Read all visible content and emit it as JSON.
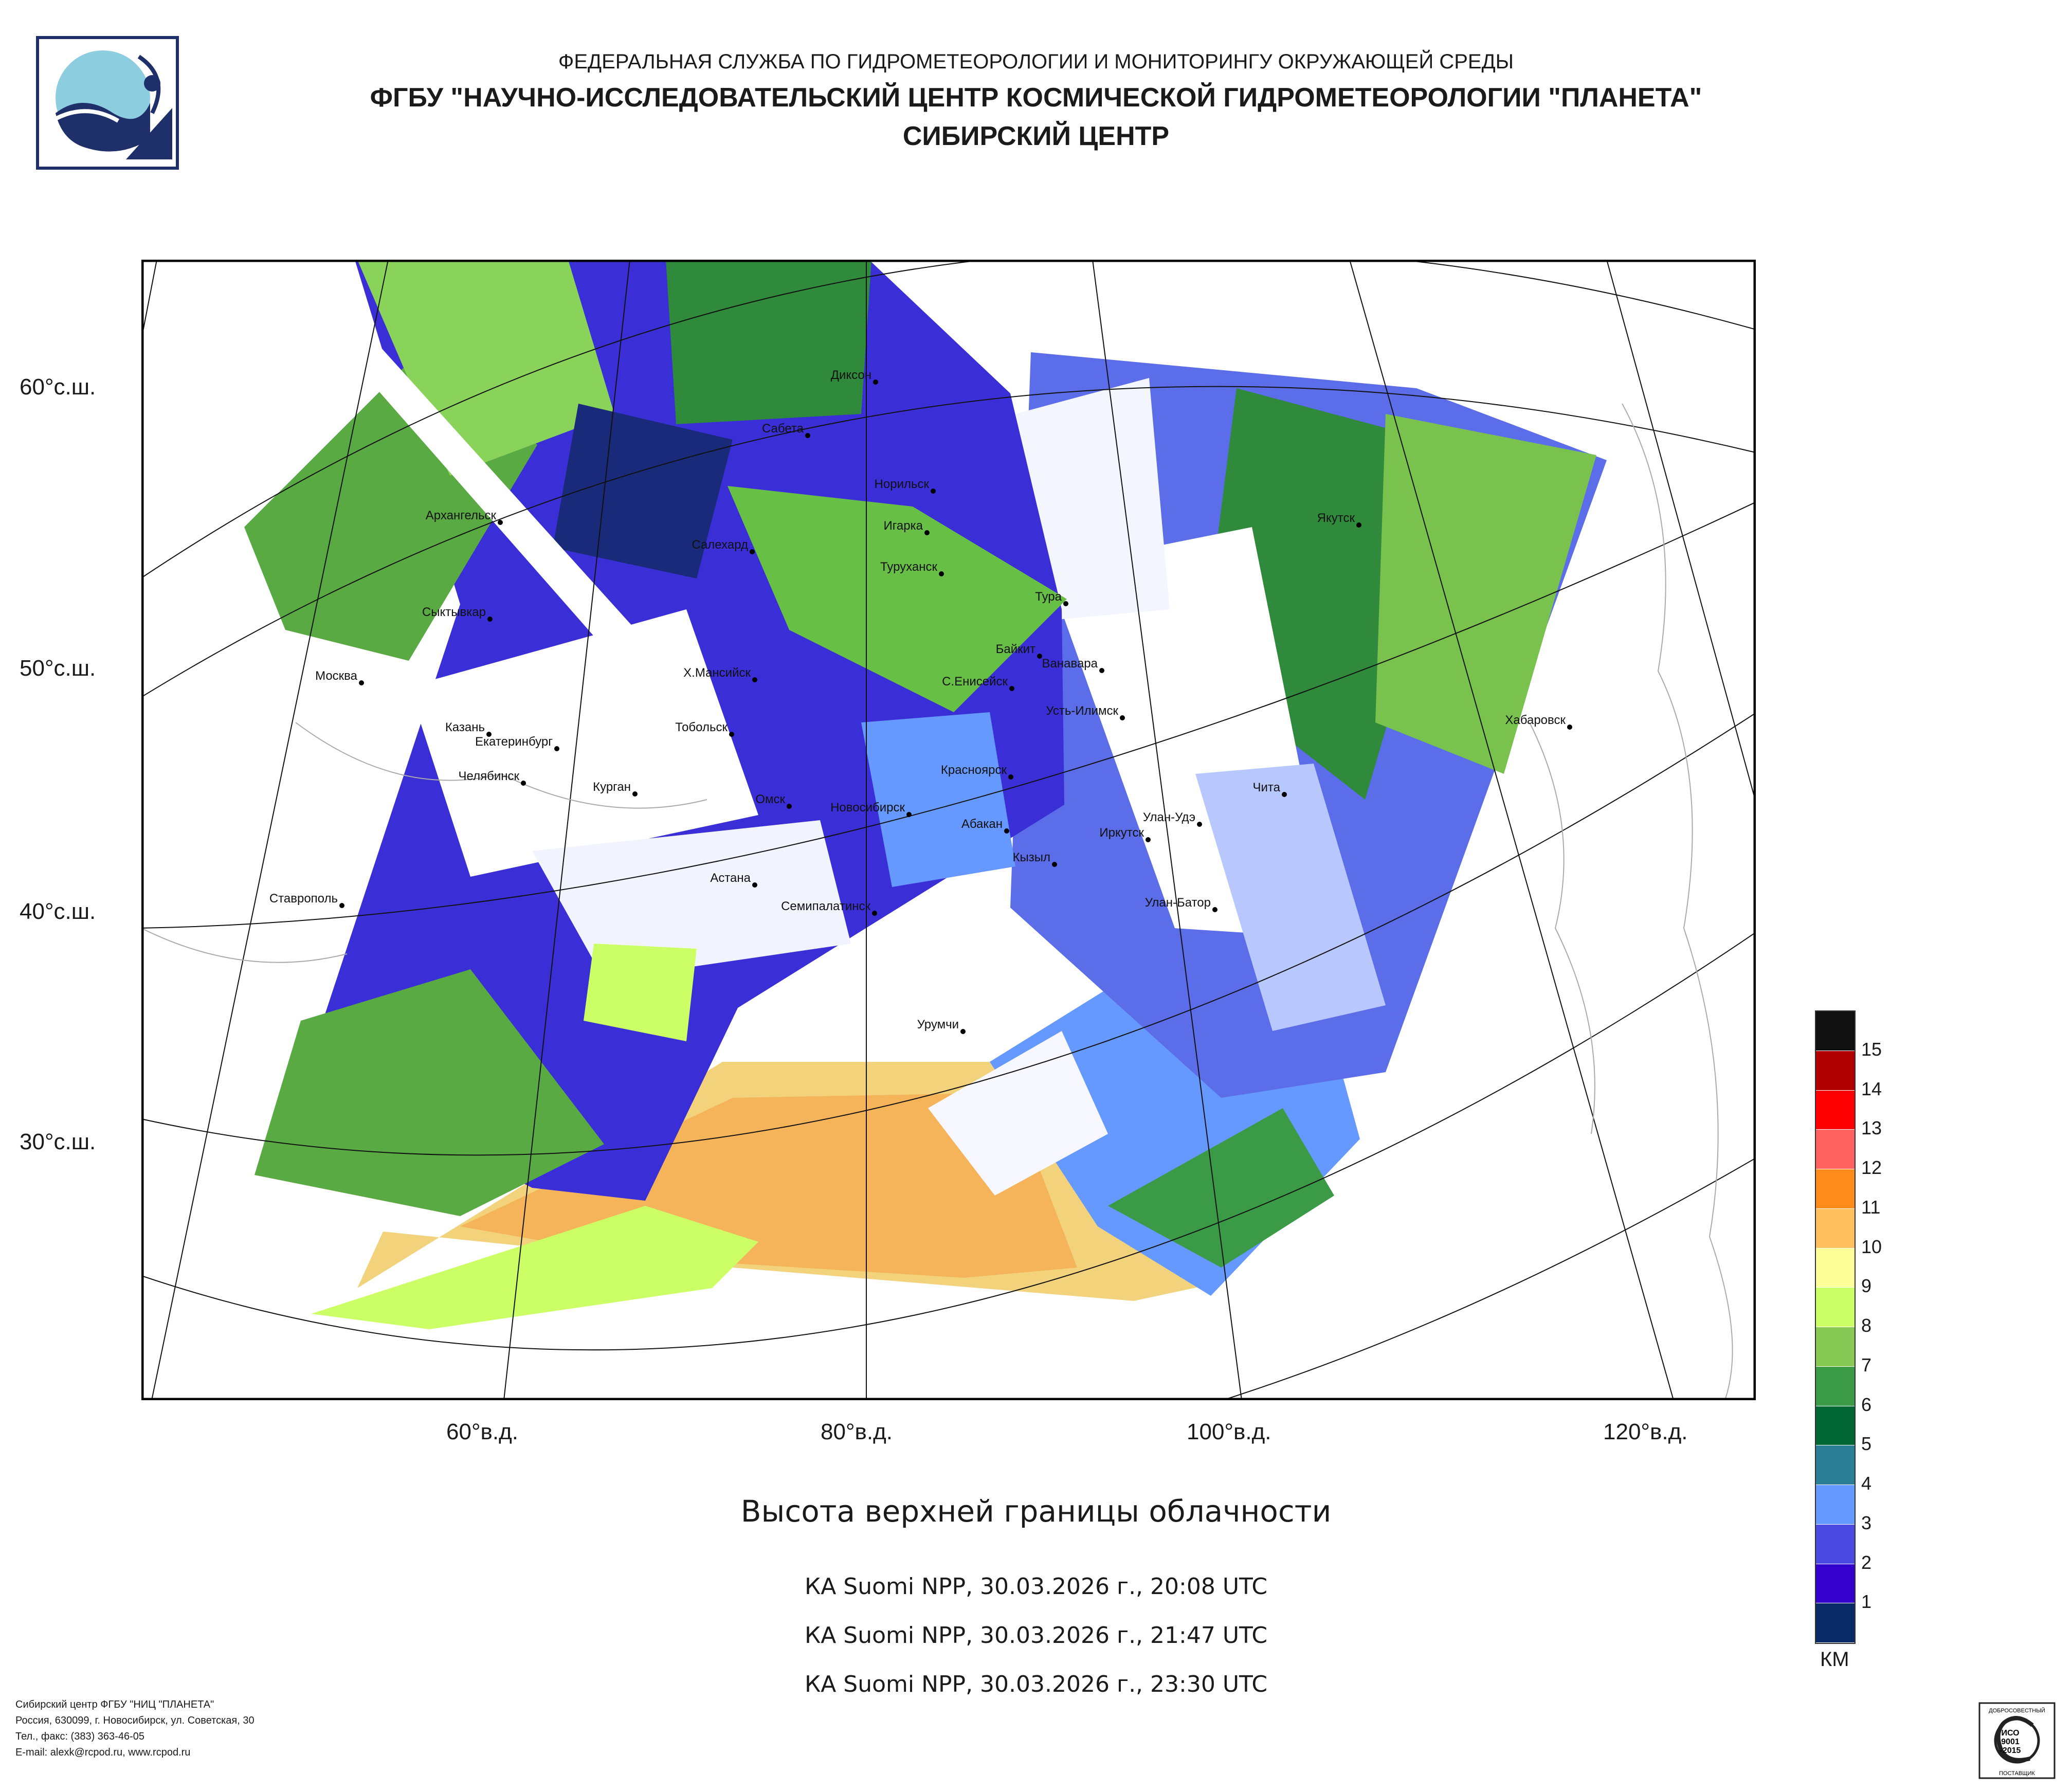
{
  "header": {
    "line1": "ФЕДЕРАЛЬНАЯ СЛУЖБА ПО ГИДРОМЕТЕОРОЛОГИИ И МОНИТОРИНГУ ОКРУЖАЮЩЕЙ СРЕДЫ",
    "line2": "ФГБУ \"НАУЧНО-ИССЛЕДОВАТЕЛЬСКИЙ ЦЕНТР КОСМИЧЕСКОЙ ГИДРОМЕТЕОРОЛОГИИ \"ПЛАНЕТА\"",
    "line3": "СИБИРСКИЙ ЦЕНТР"
  },
  "map": {
    "lat_labels": [
      "60°с.ш.",
      "50°с.ш.",
      "40°с.ш.",
      "30°с.ш."
    ],
    "lon_labels": [
      "60°в.д.",
      "80°в.д.",
      "100°в.д.",
      "120°в.д."
    ],
    "cities": [
      "Диксон",
      "Сабета",
      "Норильск",
      "Архангельск",
      "Салехард",
      "Игарка",
      "Туруханск",
      "Якутск",
      "Тура",
      "Сыктывкар",
      "Байкит",
      "Ванавара",
      "Москва",
      "Х.Мансийск",
      "С.Енисейск",
      "Усть-Илимск",
      "Хабаровск",
      "Казань",
      "Тобольск",
      "Екатеринбург",
      "Красноярск",
      "Челябинск",
      "Курган",
      "Омск",
      "Чита",
      "Новосибирск",
      "Абакан",
      "Улан-Удэ",
      "Иркутск",
      "Кызыл",
      "Ставрополь",
      "Астана",
      "Семипалатинск",
      "Улан-Батор",
      "Урумчи"
    ]
  },
  "title": "Высота верхней границы облачности",
  "passes": [
    "КА Suomi NPP, 30.03.2026 г., 20:08 UTC",
    "КА Suomi NPP, 30.03.2026 г., 21:47 UTC",
    "КА Suomi NPP, 30.03.2026 г., 23:30 UTC"
  ],
  "legend": {
    "colors": [
      "#111111",
      "#b00000",
      "#ff0000",
      "#ff6060",
      "#ff8c1a",
      "#ffc060",
      "#ffff99",
      "#ccff66",
      "#88c855",
      "#3a9a45",
      "#006633",
      "#2a7f95",
      "#6699ff",
      "#4a4ae0",
      "#3300cc",
      "#0a2a66"
    ],
    "ticks": [
      "15",
      "14",
      "13",
      "12",
      "11",
      "10",
      "9",
      "8",
      "7",
      "6",
      "5",
      "4",
      "3",
      "2",
      "1"
    ],
    "units": "КМ"
  },
  "footer": {
    "line1": "Сибирский центр ФГБУ \"НИЦ \"ПЛАНЕТА\"",
    "line2": "Россия, 630099, г. Новосибирск, ул. Советская, 30",
    "line3": "Тел., факс: (383) 363-46-05",
    "line4": "E-mail: alexk@rcpod.ru, www.rcpod.ru"
  },
  "cert": {
    "top": "ДОБРОСОВЕСТНЫЙ",
    "mid1": "ИСО",
    "mid2": "9001",
    "mid3": "-2015",
    "bottom": "ПОСТАВЩИК"
  }
}
